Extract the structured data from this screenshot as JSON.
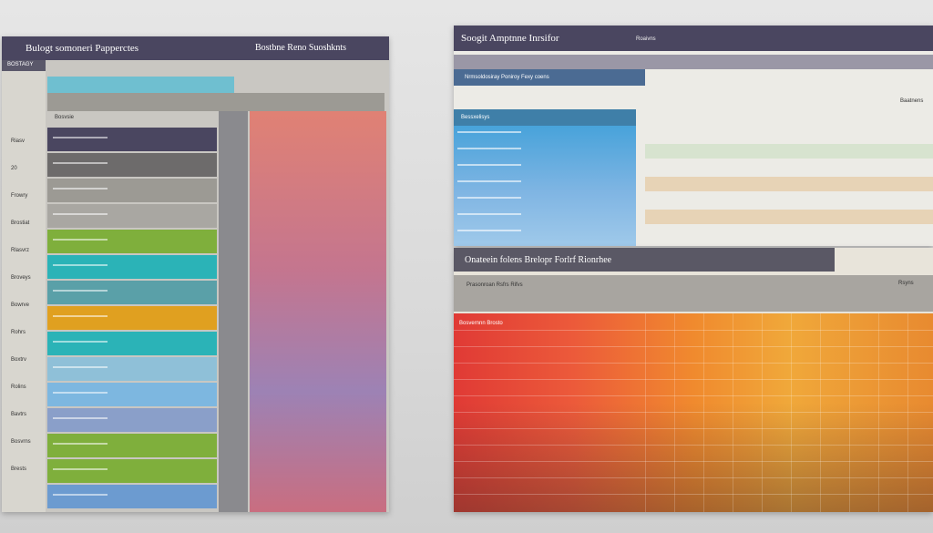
{
  "left_sheet": {
    "title": "Bulogt somoneri Papperctes",
    "sub_title": "Bostbne Reno Suoshknts",
    "corner_label": "BOSTAGY",
    "section_label": "Bosvsie",
    "row_labels": [
      "Riasv",
      "20",
      "Frowry",
      "Brostiat",
      "Rlasvrz",
      "Broveys",
      "Bowrve",
      "Rohrs",
      "Boxtrv",
      "Rolins",
      "Bavtrs",
      "Bosvrns",
      "Brests"
    ]
  },
  "right_top_sheet": {
    "title": "Soogit Amptnne Inrsifor",
    "tag": "Roaivns",
    "band_label": "Nrmsoldosiray Poniroy Fexy coens",
    "col_label": "Bessxelisys",
    "right_label": "Baatnens"
  },
  "right_bottom_sheet": {
    "title": "Onateein folens Brelopr Forlrf Rionrhee",
    "band_label": "Prasonroan Rsfrs Rifvs",
    "row_label": "Bosvernnn Brosto",
    "right_label": "Rsyns"
  },
  "colors": {
    "header": "#4a4660",
    "sidebar": "#d8d6cf",
    "teal": "#2bb3b7",
    "green": "#7faf3c",
    "yellow": "#e0a020",
    "blue": "#7db7e0",
    "red": "#e24a3a",
    "orange": "#f0962a",
    "purple": "#8e6bb0"
  }
}
